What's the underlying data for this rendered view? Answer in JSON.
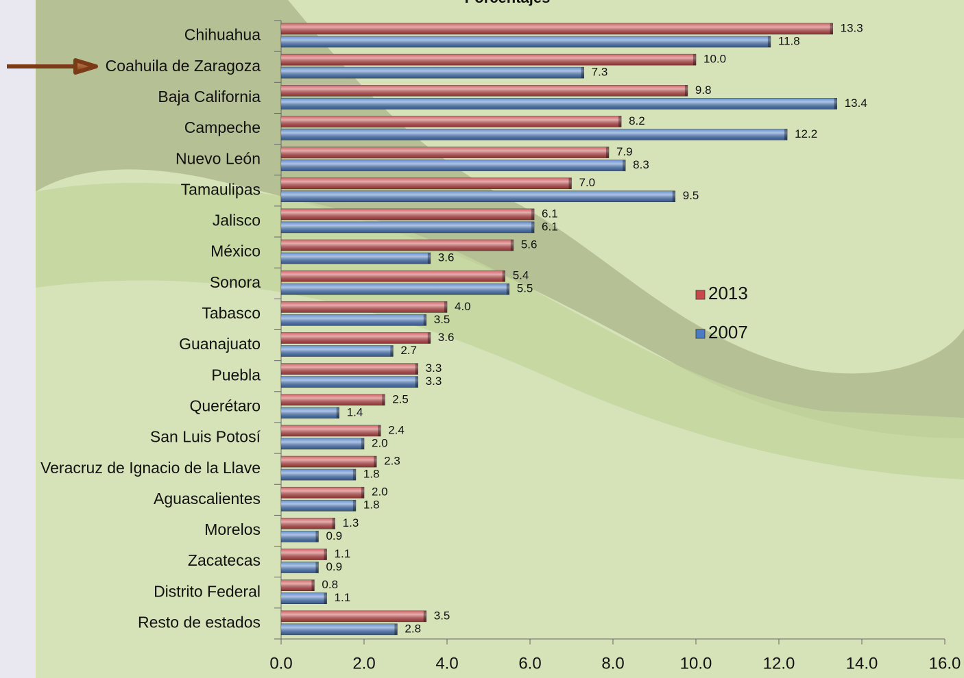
{
  "chart_data": {
    "type": "bar",
    "orientation": "horizontal",
    "title": "Porcentajes",
    "categories": [
      "Chihuahua",
      "Coahuila de Zaragoza",
      "Baja California",
      "Campeche",
      "Nuevo León",
      "Tamaulipas",
      "Jalisco",
      "México",
      "Sonora",
      "Tabasco",
      "Guanajuato",
      "Puebla",
      "Querétaro",
      "San Luis Potosí",
      "Veracruz de Ignacio de la Llave",
      "Aguascalientes",
      "Morelos",
      "Zacatecas",
      "Distrito Federal",
      "Resto de estados"
    ],
    "series": [
      {
        "name": "2013",
        "color": "#c9494a",
        "values": [
          13.3,
          10.0,
          9.8,
          8.2,
          7.9,
          7.0,
          6.1,
          5.6,
          5.4,
          4.0,
          3.6,
          3.3,
          2.5,
          2.4,
          2.3,
          2.0,
          1.3,
          1.1,
          0.8,
          3.5
        ],
        "value_labels": [
          "13.3",
          "10.0",
          "9.8",
          "8.2",
          "7.9",
          "7.0",
          "6.1",
          "5.6",
          "5.4",
          "4.0",
          "3.6",
          "3.3",
          "2.5",
          "2.4",
          "2.3",
          "2.0",
          "1.3",
          "1.1",
          "0.8",
          "3.5"
        ]
      },
      {
        "name": "2007",
        "color": "#4a7cc4",
        "values": [
          11.8,
          7.3,
          13.4,
          12.2,
          8.3,
          9.5,
          6.1,
          3.6,
          5.5,
          3.5,
          2.7,
          3.3,
          1.4,
          2.0,
          1.8,
          1.8,
          0.9,
          0.9,
          1.1,
          2.8
        ],
        "value_labels": [
          "11.8",
          "7.3",
          "13.4",
          "12.2",
          "8.3",
          "9.5",
          "6.1",
          "3.6",
          "5.5",
          "3.5",
          "2.7",
          "3.3",
          "1.4",
          "2.0",
          "1.8",
          "1.8",
          "0.9",
          "0.9",
          "1.1",
          "2.8"
        ]
      }
    ],
    "xlim": [
      0,
      16
    ],
    "xticks": [
      {
        "value": 0,
        "label": "0.0"
      },
      {
        "value": 2,
        "label": "2.0"
      },
      {
        "value": 4,
        "label": "4.0"
      },
      {
        "value": 6,
        "label": "6.0"
      },
      {
        "value": 8,
        "label": "8.0"
      },
      {
        "value": 10,
        "label": "10.0"
      },
      {
        "value": 12,
        "label": "12.0"
      },
      {
        "value": 14,
        "label": "14.0"
      },
      {
        "value": 16,
        "label": "16.0"
      }
    ],
    "legend": "right"
  }
}
